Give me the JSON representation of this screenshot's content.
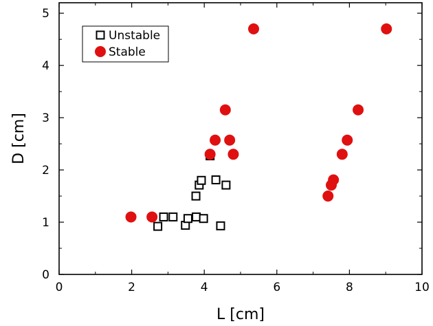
{
  "chart_data": {
    "type": "scatter",
    "xlabel": "L   [cm]",
    "ylabel": "D   [cm]",
    "xlim": [
      0,
      10
    ],
    "ylim": [
      0,
      5.2
    ],
    "xticks": [
      "0",
      "2",
      "4",
      "6",
      "8",
      "10"
    ],
    "yticks": [
      "0",
      "1",
      "2",
      "3",
      "4",
      "5"
    ],
    "grid": false,
    "legend_position": "top-left",
    "series": [
      {
        "name": "Unstable",
        "marker": "open-square",
        "color": "#000000",
        "points": [
          {
            "x": 2.72,
            "y": 0.92
          },
          {
            "x": 2.88,
            "y": 1.1
          },
          {
            "x": 3.14,
            "y": 1.1
          },
          {
            "x": 3.48,
            "y": 0.94
          },
          {
            "x": 3.55,
            "y": 1.07
          },
          {
            "x": 3.78,
            "y": 1.1
          },
          {
            "x": 3.98,
            "y": 1.07
          },
          {
            "x": 4.45,
            "y": 0.93
          },
          {
            "x": 3.77,
            "y": 1.5
          },
          {
            "x": 3.86,
            "y": 1.71
          },
          {
            "x": 3.92,
            "y": 1.8
          },
          {
            "x": 4.32,
            "y": 1.81
          },
          {
            "x": 4.6,
            "y": 1.71
          },
          {
            "x": 4.16,
            "y": 2.27
          }
        ]
      },
      {
        "name": "Stable",
        "marker": "filled-circle",
        "color": "#e01010",
        "points": [
          {
            "x": 1.98,
            "y": 1.1
          },
          {
            "x": 2.56,
            "y": 1.1
          },
          {
            "x": 4.16,
            "y": 2.3
          },
          {
            "x": 4.3,
            "y": 2.57
          },
          {
            "x": 4.58,
            "y": 3.15
          },
          {
            "x": 4.7,
            "y": 2.57
          },
          {
            "x": 4.8,
            "y": 2.3
          },
          {
            "x": 5.36,
            "y": 4.7
          },
          {
            "x": 7.41,
            "y": 1.5
          },
          {
            "x": 7.5,
            "y": 1.71
          },
          {
            "x": 7.56,
            "y": 1.81
          },
          {
            "x": 7.8,
            "y": 2.3
          },
          {
            "x": 7.94,
            "y": 2.57
          },
          {
            "x": 8.24,
            "y": 3.15
          },
          {
            "x": 9.02,
            "y": 4.7
          }
        ]
      }
    ]
  }
}
